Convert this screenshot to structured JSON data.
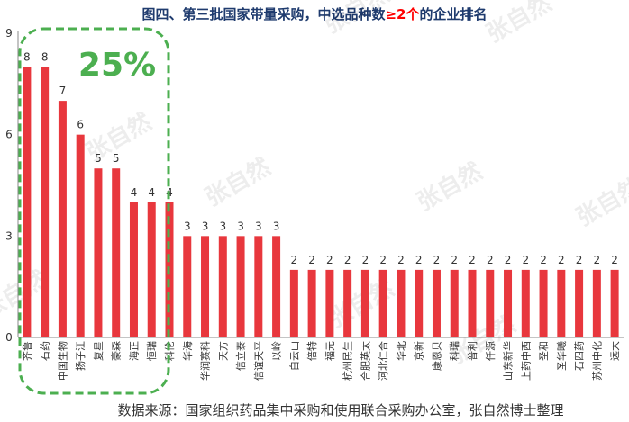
{
  "chart_data": {
    "type": "bar",
    "title": {
      "part1": "图四、第三批国家带量采购，中选品种数",
      "part2": "≥2个",
      "part3": "的企业排名"
    },
    "callout": "25%",
    "source": "数据来源：国家组织药品集中采购和使用联合采购办公室，张自然博士整理",
    "watermark": "张自然",
    "ylim": [
      0,
      9
    ],
    "yticks": [
      0,
      3,
      6,
      9
    ],
    "grid": false,
    "categories": [
      "齐鲁",
      "石药",
      "中国生物",
      "扬子江",
      "复星",
      "豪森",
      "海正",
      "恒瑞",
      "科伦",
      "华海",
      "华润赛科",
      "天方",
      "信立泰",
      "信谊天平",
      "以岭",
      "白云山",
      "倍特",
      "福元",
      "杭州民生",
      "合肥英太",
      "河北仁合",
      "华北",
      "京新",
      "康恩贝",
      "科瑞",
      "普利",
      "仟源",
      "山东新华",
      "上药中西",
      "圣和",
      "圣华曦",
      "石四药",
      "苏州中化",
      "远大"
    ],
    "values": [
      8,
      8,
      7,
      6,
      5,
      5,
      4,
      4,
      4,
      3,
      3,
      3,
      3,
      3,
      3,
      2,
      2,
      2,
      2,
      2,
      2,
      2,
      2,
      2,
      2,
      2,
      2,
      2,
      2,
      2,
      2,
      2,
      2,
      2
    ],
    "colors": {
      "bar": "#e8373d",
      "title": "#1f3b6e",
      "title_highlight": "#ff0000",
      "callout": "#4caf50",
      "axis": "#888888",
      "text": "#333333"
    }
  }
}
